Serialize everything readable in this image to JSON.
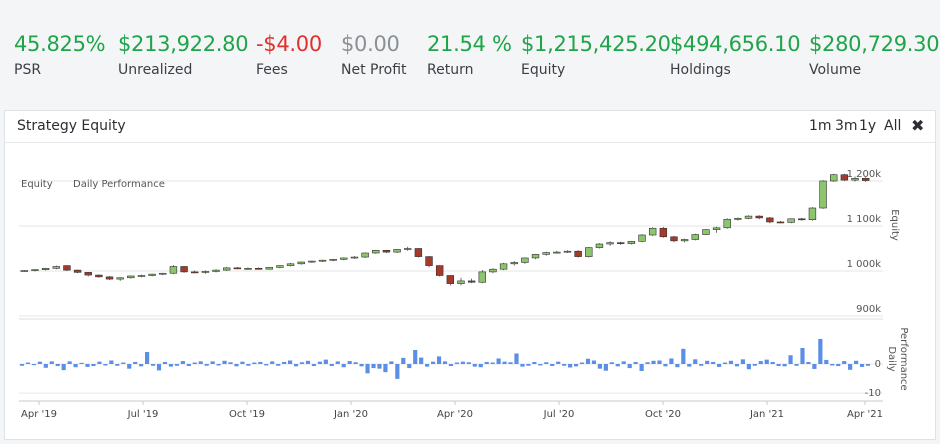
{
  "stats": [
    {
      "value": "45.825%",
      "label": "PSR",
      "color": "#1fa44a"
    },
    {
      "value": "$213,922.80",
      "label": "Unrealized",
      "color": "#1fa44a"
    },
    {
      "value": "-$4.00",
      "label": "Fees",
      "color": "#e0312d"
    },
    {
      "value": "$0.00",
      "label": "Net Profit",
      "color": "#8b9096"
    },
    {
      "value": "21.54 %",
      "label": "Return",
      "color": "#1fa44a"
    },
    {
      "value": "$1,215,425.20",
      "label": "Equity",
      "color": "#1fa44a"
    },
    {
      "value": "$494,656.10",
      "label": "Holdings",
      "color": "#1fa44a"
    },
    {
      "value": "$280,729.30",
      "label": "Volume",
      "color": "#1fa44a"
    }
  ],
  "panel": {
    "title": "Strategy Equity",
    "ranges": [
      "1m",
      "3m",
      "1y",
      "All"
    ],
    "close_icon": "close-icon"
  },
  "chart_data": {
    "type": "candlestick",
    "legend": [
      "Equity",
      "Daily Performance"
    ],
    "legend_position": "top-left",
    "colors": {
      "up": "#8cc56e",
      "down": "#a33a2b",
      "bars": "#5b8ee6",
      "border": "#333333"
    },
    "x_ticks": [
      "Apr '19",
      "Jul '19",
      "Oct '19",
      "Jan '20",
      "Apr '20",
      "Jul '20",
      "Oct '20",
      "Jan '21",
      "Apr '21"
    ],
    "equity_axis": {
      "label": "Equity",
      "ticks": [
        "1 200k",
        "1 100k",
        "1 000k",
        "900k"
      ],
      "range": [
        880000,
        1240000
      ]
    },
    "daily_axis": {
      "label": "Daily Performance",
      "ticks": [
        "0",
        "-10"
      ],
      "range": [
        -12,
        12
      ]
    },
    "equity_candles": [
      {
        "o": 1000000,
        "h": 1002000,
        "l": 998000,
        "c": 1001000
      },
      {
        "o": 1001000,
        "h": 1004000,
        "l": 999000,
        "c": 1003000
      },
      {
        "o": 1003000,
        "h": 1007000,
        "l": 1001000,
        "c": 1006000
      },
      {
        "o": 1006000,
        "h": 1012000,
        "l": 1004000,
        "c": 1010000
      },
      {
        "o": 1012000,
        "h": 1013000,
        "l": 1000000,
        "c": 1002000
      },
      {
        "o": 1002000,
        "h": 1003000,
        "l": 995000,
        "c": 997000
      },
      {
        "o": 997000,
        "h": 998000,
        "l": 988000,
        "c": 991000
      },
      {
        "o": 991000,
        "h": 992000,
        "l": 985000,
        "c": 987000
      },
      {
        "o": 987000,
        "h": 989000,
        "l": 980000,
        "c": 982000
      },
      {
        "o": 982000,
        "h": 986000,
        "l": 978000,
        "c": 985000
      },
      {
        "o": 985000,
        "h": 990000,
        "l": 983000,
        "c": 989000
      },
      {
        "o": 989000,
        "h": 992000,
        "l": 986000,
        "c": 990000
      },
      {
        "o": 990000,
        "h": 994000,
        "l": 988000,
        "c": 993000
      },
      {
        "o": 993000,
        "h": 996000,
        "l": 991000,
        "c": 995000
      },
      {
        "o": 995000,
        "h": 1013000,
        "l": 993000,
        "c": 1010000
      },
      {
        "o": 1010000,
        "h": 1011000,
        "l": 996000,
        "c": 998000
      },
      {
        "o": 998000,
        "h": 1001000,
        "l": 995000,
        "c": 997000
      },
      {
        "o": 997000,
        "h": 1001000,
        "l": 994000,
        "c": 999000
      },
      {
        "o": 999000,
        "h": 1004000,
        "l": 997000,
        "c": 1002000
      },
      {
        "o": 1002000,
        "h": 1009000,
        "l": 1000000,
        "c": 1007000
      },
      {
        "o": 1007000,
        "h": 1009000,
        "l": 1004000,
        "c": 1005000
      },
      {
        "o": 1005000,
        "h": 1008000,
        "l": 1003000,
        "c": 1006000
      },
      {
        "o": 1006000,
        "h": 1008000,
        "l": 1003000,
        "c": 1004000
      },
      {
        "o": 1004000,
        "h": 1009000,
        "l": 1003000,
        "c": 1008000
      },
      {
        "o": 1008000,
        "h": 1013000,
        "l": 1006000,
        "c": 1012000
      },
      {
        "o": 1012000,
        "h": 1018000,
        "l": 1010000,
        "c": 1016000
      },
      {
        "o": 1016000,
        "h": 1021000,
        "l": 1014000,
        "c": 1020000
      },
      {
        "o": 1020000,
        "h": 1023000,
        "l": 1018000,
        "c": 1022000
      },
      {
        "o": 1022000,
        "h": 1025000,
        "l": 1020000,
        "c": 1024000
      },
      {
        "o": 1024000,
        "h": 1027000,
        "l": 1022000,
        "c": 1026000
      },
      {
        "o": 1026000,
        "h": 1030000,
        "l": 1024000,
        "c": 1029000
      },
      {
        "o": 1029000,
        "h": 1033000,
        "l": 1027000,
        "c": 1031000
      },
      {
        "o": 1031000,
        "h": 1041000,
        "l": 1029000,
        "c": 1040000
      },
      {
        "o": 1040000,
        "h": 1047000,
        "l": 1038000,
        "c": 1046000
      },
      {
        "o": 1046000,
        "h": 1047000,
        "l": 1040000,
        "c": 1042000
      },
      {
        "o": 1042000,
        "h": 1049000,
        "l": 1040000,
        "c": 1048000
      },
      {
        "o": 1048000,
        "h": 1054000,
        "l": 1045000,
        "c": 1050000
      },
      {
        "o": 1050000,
        "h": 1051000,
        "l": 1030000,
        "c": 1032000
      },
      {
        "o": 1032000,
        "h": 1033000,
        "l": 1008000,
        "c": 1012000
      },
      {
        "o": 1012000,
        "h": 1013000,
        "l": 988000,
        "c": 990000
      },
      {
        "o": 990000,
        "h": 991000,
        "l": 968000,
        "c": 972000
      },
      {
        "o": 972000,
        "h": 985000,
        "l": 968000,
        "c": 978000
      },
      {
        "o": 978000,
        "h": 983000,
        "l": 973000,
        "c": 975000
      },
      {
        "o": 975000,
        "h": 1002000,
        "l": 973000,
        "c": 998000
      },
      {
        "o": 998000,
        "h": 1006000,
        "l": 995000,
        "c": 1004000
      },
      {
        "o": 1004000,
        "h": 1018000,
        "l": 1002000,
        "c": 1016000
      },
      {
        "o": 1016000,
        "h": 1022000,
        "l": 1012000,
        "c": 1019000
      },
      {
        "o": 1019000,
        "h": 1030000,
        "l": 1016000,
        "c": 1029000
      },
      {
        "o": 1029000,
        "h": 1038000,
        "l": 1026000,
        "c": 1037000
      },
      {
        "o": 1037000,
        "h": 1043000,
        "l": 1034000,
        "c": 1041000
      },
      {
        "o": 1041000,
        "h": 1045000,
        "l": 1039000,
        "c": 1042000
      },
      {
        "o": 1042000,
        "h": 1046000,
        "l": 1040000,
        "c": 1044000
      },
      {
        "o": 1044000,
        "h": 1046000,
        "l": 1030000,
        "c": 1032000
      },
      {
        "o": 1032000,
        "h": 1053000,
        "l": 1030000,
        "c": 1052000
      },
      {
        "o": 1052000,
        "h": 1062000,
        "l": 1050000,
        "c": 1060000
      },
      {
        "o": 1060000,
        "h": 1066000,
        "l": 1056000,
        "c": 1063000
      },
      {
        "o": 1063000,
        "h": 1065000,
        "l": 1058000,
        "c": 1061000
      },
      {
        "o": 1061000,
        "h": 1067000,
        "l": 1059000,
        "c": 1066000
      },
      {
        "o": 1066000,
        "h": 1082000,
        "l": 1064000,
        "c": 1080000
      },
      {
        "o": 1080000,
        "h": 1097000,
        "l": 1078000,
        "c": 1095000
      },
      {
        "o": 1095000,
        "h": 1098000,
        "l": 1074000,
        "c": 1076000
      },
      {
        "o": 1076000,
        "h": 1078000,
        "l": 1064000,
        "c": 1067000
      },
      {
        "o": 1067000,
        "h": 1072000,
        "l": 1064000,
        "c": 1070000
      },
      {
        "o": 1070000,
        "h": 1083000,
        "l": 1068000,
        "c": 1081000
      },
      {
        "o": 1081000,
        "h": 1093000,
        "l": 1080000,
        "c": 1092000
      },
      {
        "o": 1092000,
        "h": 1098000,
        "l": 1085000,
        "c": 1096000
      },
      {
        "o": 1096000,
        "h": 1117000,
        "l": 1094000,
        "c": 1115000
      },
      {
        "o": 1115000,
        "h": 1119000,
        "l": 1112000,
        "c": 1117000
      },
      {
        "o": 1117000,
        "h": 1124000,
        "l": 1115000,
        "c": 1122000
      },
      {
        "o": 1122000,
        "h": 1124000,
        "l": 1115000,
        "c": 1118000
      },
      {
        "o": 1118000,
        "h": 1120000,
        "l": 1106000,
        "c": 1109000
      },
      {
        "o": 1109000,
        "h": 1111000,
        "l": 1106000,
        "c": 1108000
      },
      {
        "o": 1108000,
        "h": 1117000,
        "l": 1106000,
        "c": 1116000
      },
      {
        "o": 1116000,
        "h": 1118000,
        "l": 1112000,
        "c": 1114000
      },
      {
        "o": 1114000,
        "h": 1142000,
        "l": 1112000,
        "c": 1140000
      },
      {
        "o": 1140000,
        "h": 1202000,
        "l": 1138000,
        "c": 1200000
      },
      {
        "o": 1200000,
        "h": 1216000,
        "l": 1198000,
        "c": 1214000
      },
      {
        "o": 1214000,
        "h": 1216000,
        "l": 1200000,
        "c": 1202000
      },
      {
        "o": 1202000,
        "h": 1210000,
        "l": 1199000,
        "c": 1206000
      },
      {
        "o": 1206000,
        "h": 1208000,
        "l": 1198000,
        "c": 1201000
      }
    ],
    "daily_values": [
      -0.6,
      0.5,
      -0.4,
      0.8,
      -1.3,
      0.9,
      -0.7,
      -2.1,
      0.9,
      -1.1,
      0.4,
      -1.0,
      -0.7,
      0.8,
      -0.5,
      1.2,
      -0.6,
      0.5,
      -1.6,
      0.7,
      -0.8,
      4.1,
      -0.6,
      -2.2,
      0.7,
      -0.9,
      -0.6,
      1.0,
      -0.7,
      0.5,
      0.9,
      -0.6,
      0.9,
      -0.5,
      1.1,
      0.6,
      -0.8,
      0.8,
      -0.6,
      0.5,
      0.7,
      -0.5,
      0.9,
      -0.6,
      0.7,
      1.2,
      -0.8,
      0.6,
      1.1,
      -0.7,
      0.8,
      1.5,
      -0.7,
      0.9,
      -1.1,
      1.0,
      0.6,
      -0.8,
      -3.2,
      -1.4,
      -1.6,
      -2.8,
      0.9,
      -5.1,
      2.1,
      -1.4,
      4.8,
      2.2,
      -0.9,
      0.8,
      2.6,
      0.9,
      -0.7,
      0.5,
      0.8,
      0.6,
      -0.9,
      -1.1,
      0.7,
      0.5,
      1.9,
      0.8,
      0.6,
      3.6,
      -0.9,
      -0.6,
      0.7,
      -0.5,
      0.6,
      -0.7,
      0.8,
      -0.6,
      -1.2,
      -0.8,
      0.5,
      1.8,
      1.2,
      -1.6,
      -2.3,
      0.6,
      -0.8,
      0.9,
      -1.4,
      0.7,
      -2.4,
      0.6,
      1.1,
      1.2,
      -0.8,
      1.9,
      -1.1,
      5.2,
      -0.9,
      1.6,
      -0.6,
      1.1,
      0.7,
      -1.0,
      0.5,
      1.1,
      -0.8,
      1.6,
      -1.8,
      -0.6,
      1.0,
      1.5,
      0.7,
      -0.7,
      -0.8,
      3.0,
      -0.6,
      5.5,
      0.7,
      -1.7,
      8.6,
      1.4,
      -0.5,
      -0.7,
      1.0,
      -2.0,
      1.1,
      -1.0,
      -0.6
    ]
  }
}
